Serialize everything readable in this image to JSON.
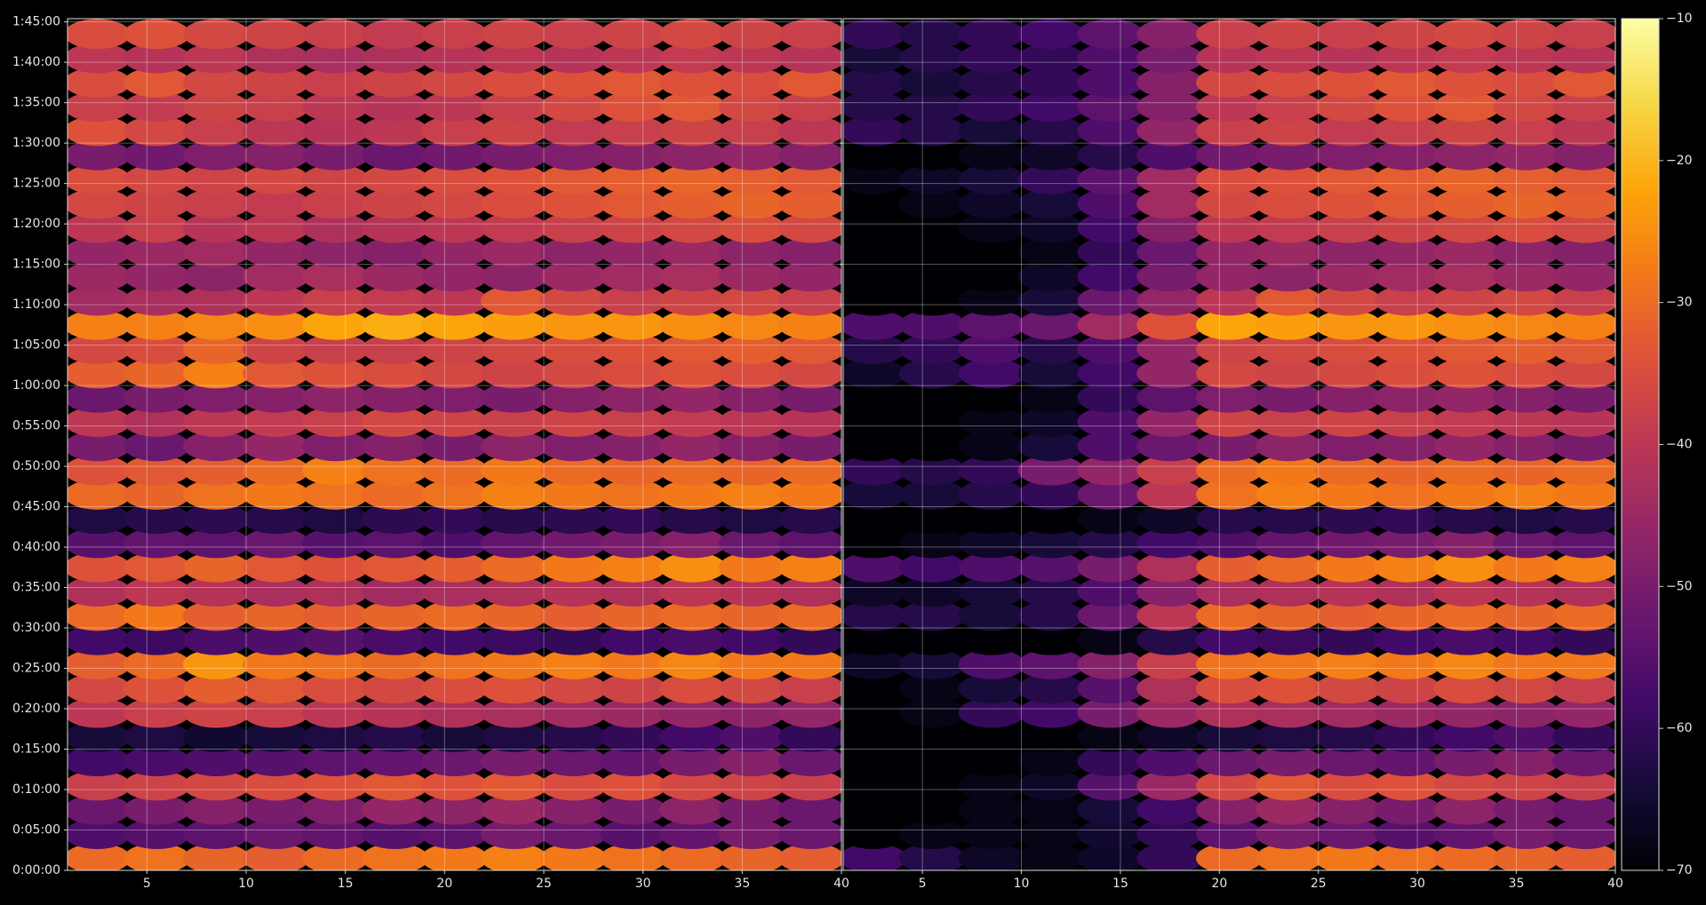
{
  "chart_data": [
    {
      "type": "heatmap",
      "colormap": "inferno",
      "clim": [
        -70,
        -10
      ],
      "grid": true,
      "xlim": [
        1,
        40
      ],
      "ylim": [
        0,
        105.4
      ],
      "xticks": [
        5,
        10,
        15,
        20,
        25,
        30,
        35,
        40
      ],
      "yticks": [
        {
          "value": 0,
          "label": "0:00:00"
        },
        {
          "value": 5,
          "label": "0:05:00"
        },
        {
          "value": 10,
          "label": "0:10:00"
        },
        {
          "value": 15,
          "label": "0:15:00"
        },
        {
          "value": 20,
          "label": "0:20:00"
        },
        {
          "value": 25,
          "label": "0:25:00"
        },
        {
          "value": 30,
          "label": "0:30:00"
        },
        {
          "value": 35,
          "label": "0:35:00"
        },
        {
          "value": 40,
          "label": "0:40:00"
        },
        {
          "value": 45,
          "label": "0:45:00"
        },
        {
          "value": 50,
          "label": "0:50:00"
        },
        {
          "value": 55,
          "label": "0:55:00"
        },
        {
          "value": 60,
          "label": "1:00:00"
        },
        {
          "value": 65,
          "label": "1:05:00"
        },
        {
          "value": 70,
          "label": "1:10:00"
        },
        {
          "value": 75,
          "label": "1:15:00"
        },
        {
          "value": 80,
          "label": "1:20:00"
        },
        {
          "value": 85,
          "label": "1:25:00"
        },
        {
          "value": 90,
          "label": "1:30:00"
        },
        {
          "value": 95,
          "label": "1:35:00"
        },
        {
          "value": 100,
          "label": "1:40:00"
        },
        {
          "value": 105,
          "label": "1:45:00"
        }
      ],
      "x": [
        2.5,
        5.5,
        8.5,
        11.5,
        14.5,
        17.5,
        20.5,
        23.5,
        26.5,
        29.5,
        32.5,
        35.5,
        38.5
      ],
      "y": [
        1.5,
        4.5,
        7.5,
        10.5,
        13.5,
        16.5,
        19.5,
        22.5,
        25.5,
        28.5,
        31.5,
        34.5,
        37.5,
        40.5,
        43.5,
        46.5,
        49.5,
        52.5,
        55.5,
        58.5,
        61.5,
        64.5,
        67.5,
        70.5,
        73.5,
        76.5,
        79.5,
        82.5,
        85.5,
        88.5,
        91.5,
        94.5,
        97.5,
        100.5,
        103.5
      ],
      "values": [
        [
          -30,
          -29,
          -31,
          -32,
          -30,
          -29,
          -28,
          -27,
          -28,
          -29,
          -30,
          -31,
          -32
        ],
        [
          -56,
          -55,
          -54,
          -52,
          -53,
          -55,
          -54,
          -50,
          -52,
          -55,
          -53,
          -50,
          -52
        ],
        [
          -52,
          -50,
          -48,
          -50,
          -49,
          -46,
          -47,
          -45,
          -48,
          -50,
          -47,
          -50,
          -52
        ],
        [
          -38,
          -37,
          -36,
          -35,
          -34,
          -33,
          -34,
          -33,
          -35,
          -34,
          -36,
          -37,
          -38
        ],
        [
          -58,
          -57,
          -56,
          -55,
          -54,
          -53,
          -52,
          -50,
          -52,
          -53,
          -50,
          -48,
          -52
        ],
        [
          -64,
          -63,
          -65,
          -64,
          -63,
          -62,
          -64,
          -63,
          -62,
          -60,
          -58,
          -56,
          -60
        ],
        [
          -40,
          -38,
          -37,
          -38,
          -40,
          -41,
          -42,
          -43,
          -44,
          -45,
          -46,
          -47,
          -46
        ],
        [
          -36,
          -34,
          -32,
          -33,
          -35,
          -36,
          -35,
          -34,
          -36,
          -37,
          -35,
          -36,
          -38
        ],
        [
          -32,
          -30,
          -24,
          -28,
          -29,
          -30,
          -29,
          -28,
          -27,
          -28,
          -26,
          -28,
          -28
        ],
        [
          -58,
          -59,
          -57,
          -56,
          -55,
          -57,
          -58,
          -59,
          -60,
          -58,
          -57,
          -58,
          -60
        ],
        [
          -30,
          -28,
          -32,
          -31,
          -32,
          -31,
          -30,
          -31,
          -32,
          -31,
          -30,
          -31,
          -30
        ],
        [
          -42,
          -40,
          -41,
          -43,
          -42,
          -44,
          -43,
          -42,
          -41,
          -42,
          -40,
          -41,
          -42
        ],
        [
          -34,
          -33,
          -31,
          -33,
          -34,
          -33,
          -32,
          -30,
          -28,
          -27,
          -25,
          -28,
          -27
        ],
        [
          -55,
          -53,
          -54,
          -52,
          -55,
          -54,
          -56,
          -53,
          -51,
          -50,
          -48,
          -52,
          -54
        ],
        [
          -63,
          -62,
          -61,
          -62,
          -63,
          -61,
          -60,
          -62,
          -61,
          -60,
          -62,
          -63,
          -62
        ],
        [
          -30,
          -31,
          -29,
          -28,
          -29,
          -30,
          -29,
          -27,
          -28,
          -29,
          -28,
          -27,
          -28
        ],
        [
          -34,
          -33,
          -32,
          -30,
          -27,
          -29,
          -30,
          -28,
          -30,
          -31,
          -30,
          -31,
          -30
        ],
        [
          -50,
          -52,
          -48,
          -46,
          -49,
          -48,
          -50,
          -47,
          -49,
          -48,
          -46,
          -48,
          -50
        ],
        [
          -40,
          -42,
          -40,
          -39,
          -38,
          -36,
          -37,
          -38,
          -37,
          -38,
          -39,
          -40,
          -41
        ],
        [
          -52,
          -50,
          -49,
          -48,
          -47,
          -48,
          -49,
          -50,
          -48,
          -47,
          -46,
          -48,
          -50
        ],
        [
          -32,
          -31,
          -27,
          -33,
          -34,
          -35,
          -36,
          -37,
          -36,
          -35,
          -34,
          -35,
          -36
        ],
        [
          -36,
          -35,
          -31,
          -37,
          -38,
          -38,
          -37,
          -36,
          -35,
          -34,
          -33,
          -32,
          -33
        ],
        [
          -27,
          -27,
          -26,
          -25,
          -22,
          -21,
          -22,
          -23,
          -24,
          -24,
          -25,
          -26,
          -27
        ],
        [
          -44,
          -43,
          -42,
          -40,
          -38,
          -39,
          -40,
          -33,
          -36,
          -38,
          -37,
          -36,
          -38
        ],
        [
          -45,
          -46,
          -47,
          -44,
          -43,
          -45,
          -46,
          -47,
          -45,
          -44,
          -43,
          -45,
          -46
        ],
        [
          -46,
          -45,
          -44,
          -46,
          -47,
          -48,
          -46,
          -45,
          -47,
          -46,
          -45,
          -47,
          -48
        ],
        [
          -40,
          -38,
          -41,
          -40,
          -42,
          -41,
          -40,
          -39,
          -38,
          -37,
          -36,
          -35,
          -36
        ],
        [
          -36,
          -37,
          -38,
          -39,
          -38,
          -37,
          -36,
          -35,
          -34,
          -33,
          -32,
          -31,
          -32
        ],
        [
          -35,
          -36,
          -37,
          -36,
          -37,
          -36,
          -35,
          -34,
          -33,
          -32,
          -31,
          -32,
          -33
        ],
        [
          -50,
          -51,
          -49,
          -48,
          -50,
          -52,
          -51,
          -50,
          -49,
          -48,
          -47,
          -46,
          -48
        ],
        [
          -34,
          -36,
          -38,
          -40,
          -41,
          -40,
          -38,
          -37,
          -39,
          -38,
          -37,
          -38,
          -40
        ],
        [
          -38,
          -39,
          -37,
          -38,
          -40,
          -41,
          -40,
          -38,
          -36,
          -34,
          -33,
          -36,
          -38
        ],
        [
          -35,
          -33,
          -36,
          -37,
          -38,
          -37,
          -36,
          -35,
          -34,
          -33,
          -34,
          -35,
          -33
        ],
        [
          -40,
          -41,
          -40,
          -42,
          -43,
          -42,
          -41,
          -40,
          -41,
          -40,
          -39,
          -40,
          -41
        ],
        [
          -35,
          -34,
          -36,
          -37,
          -38,
          -39,
          -38,
          -37,
          -38,
          -37,
          -36,
          -37,
          -38
        ]
      ]
    },
    {
      "type": "heatmap",
      "colormap": "inferno",
      "clim": [
        -70,
        -10
      ],
      "grid": true,
      "sharey": true,
      "xlim": [
        1,
        40
      ],
      "ylim": [
        0,
        105.4
      ],
      "xticks": [
        5,
        10,
        15,
        20,
        25,
        30,
        35,
        40
      ],
      "x": [
        2.5,
        5.5,
        8.5,
        11.5,
        14.5,
        17.5,
        20.5,
        23.5,
        26.5,
        29.5,
        32.5,
        35.5,
        38.5
      ],
      "y": [
        1.5,
        4.5,
        7.5,
        10.5,
        13.5,
        16.5,
        19.5,
        22.5,
        25.5,
        28.5,
        31.5,
        34.5,
        37.5,
        40.5,
        43.5,
        46.5,
        49.5,
        52.5,
        55.5,
        58.5,
        61.5,
        64.5,
        67.5,
        70.5,
        73.5,
        76.5,
        79.5,
        82.5,
        85.5,
        88.5,
        91.5,
        94.5,
        97.5,
        100.5,
        103.5
      ],
      "values": [
        [
          -58,
          -62,
          -66,
          -68,
          -66,
          -60,
          -30,
          -29,
          -28,
          -29,
          -30,
          -31,
          -32
        ],
        [
          -70,
          -68,
          -68,
          -68,
          -65,
          -60,
          -54,
          -50,
          -52,
          -55,
          -53,
          -50,
          -52
        ],
        [
          -70,
          -70,
          -68,
          -68,
          -64,
          -58,
          -48,
          -45,
          -48,
          -50,
          -47,
          -50,
          -52
        ],
        [
          -70,
          -70,
          -68,
          -66,
          -55,
          -45,
          -36,
          -33,
          -35,
          -34,
          -36,
          -37,
          -38
        ],
        [
          -70,
          -70,
          -70,
          -68,
          -60,
          -56,
          -52,
          -50,
          -52,
          -53,
          -50,
          -48,
          -52
        ],
        [
          -70,
          -70,
          -70,
          -70,
          -68,
          -66,
          -64,
          -63,
          -62,
          -60,
          -58,
          -56,
          -60
        ],
        [
          -70,
          -68,
          -60,
          -58,
          -50,
          -45,
          -42,
          -43,
          -44,
          -45,
          -46,
          -47,
          -46
        ],
        [
          -70,
          -68,
          -64,
          -62,
          -55,
          -42,
          -35,
          -34,
          -36,
          -37,
          -35,
          -36,
          -38
        ],
        [
          -66,
          -64,
          -56,
          -54,
          -48,
          -38,
          -29,
          -28,
          -27,
          -28,
          -26,
          -28,
          -28
        ],
        [
          -70,
          -70,
          -70,
          -70,
          -68,
          -62,
          -58,
          -59,
          -60,
          -58,
          -57,
          -58,
          -60
        ],
        [
          -62,
          -62,
          -64,
          -62,
          -52,
          -40,
          -30,
          -31,
          -32,
          -31,
          -30,
          -31,
          -30
        ],
        [
          -66,
          -66,
          -64,
          -62,
          -56,
          -48,
          -43,
          -42,
          -41,
          -42,
          -40,
          -41,
          -42
        ],
        [
          -56,
          -58,
          -56,
          -55,
          -50,
          -42,
          -32,
          -30,
          -28,
          -27,
          -25,
          -28,
          -27
        ],
        [
          -70,
          -68,
          -66,
          -64,
          -62,
          -58,
          -56,
          -53,
          -51,
          -50,
          -48,
          -52,
          -54
        ],
        [
          -70,
          -70,
          -70,
          -70,
          -68,
          -66,
          -62,
          -62,
          -61,
          -60,
          -62,
          -63,
          -62
        ],
        [
          -64,
          -64,
          -62,
          -60,
          -52,
          -40,
          -29,
          -27,
          -28,
          -29,
          -28,
          -27,
          -28
        ],
        [
          -60,
          -62,
          -60,
          -50,
          -46,
          -38,
          -30,
          -28,
          -30,
          -31,
          -30,
          -31,
          -30
        ],
        [
          -70,
          -70,
          -68,
          -64,
          -56,
          -52,
          -50,
          -47,
          -49,
          -48,
          -46,
          -48,
          -50
        ],
        [
          -70,
          -70,
          -68,
          -66,
          -56,
          -46,
          -37,
          -38,
          -37,
          -38,
          -39,
          -40,
          -41
        ],
        [
          -70,
          -70,
          -70,
          -68,
          -60,
          -54,
          -49,
          -50,
          -48,
          -47,
          -46,
          -48,
          -50
        ],
        [
          -66,
          -62,
          -58,
          -64,
          -58,
          -46,
          -36,
          -37,
          -36,
          -35,
          -34,
          -35,
          -36
        ],
        [
          -62,
          -60,
          -56,
          -62,
          -56,
          -46,
          -37,
          -36,
          -35,
          -34,
          -33,
          -32,
          -33
        ],
        [
          -56,
          -56,
          -54,
          -52,
          -44,
          -34,
          -22,
          -23,
          -24,
          -24,
          -25,
          -26,
          -27
        ],
        [
          -70,
          -70,
          -68,
          -64,
          -52,
          -46,
          -40,
          -33,
          -36,
          -38,
          -37,
          -36,
          -38
        ],
        [
          -70,
          -70,
          -70,
          -66,
          -58,
          -50,
          -46,
          -47,
          -45,
          -44,
          -43,
          -45,
          -46
        ],
        [
          -70,
          -70,
          -70,
          -68,
          -60,
          -52,
          -46,
          -45,
          -47,
          -46,
          -45,
          -47,
          -48
        ],
        [
          -70,
          -70,
          -68,
          -66,
          -58,
          -48,
          -40,
          -39,
          -38,
          -37,
          -36,
          -35,
          -36
        ],
        [
          -70,
          -68,
          -66,
          -64,
          -56,
          -44,
          -36,
          -35,
          -34,
          -33,
          -32,
          -31,
          -32
        ],
        [
          -68,
          -66,
          -64,
          -60,
          -54,
          -44,
          -35,
          -34,
          -33,
          -32,
          -31,
          -32,
          -33
        ],
        [
          -70,
          -70,
          -68,
          -66,
          -62,
          -56,
          -51,
          -50,
          -49,
          -48,
          -47,
          -46,
          -48
        ],
        [
          -60,
          -62,
          -64,
          -62,
          -56,
          -46,
          -38,
          -37,
          -39,
          -38,
          -37,
          -38,
          -40
        ],
        [
          -62,
          -62,
          -60,
          -58,
          -54,
          -48,
          -40,
          -38,
          -36,
          -34,
          -33,
          -36,
          -38
        ],
        [
          -62,
          -64,
          -62,
          -60,
          -56,
          -48,
          -36,
          -35,
          -34,
          -33,
          -34,
          -35,
          -33
        ],
        [
          -64,
          -62,
          -60,
          -60,
          -56,
          -50,
          -41,
          -40,
          -41,
          -40,
          -39,
          -40,
          -41
        ],
        [
          -60,
          -62,
          -60,
          -58,
          -54,
          -48,
          -38,
          -37,
          -38,
          -37,
          -36,
          -37,
          -38
        ]
      ],
      "colorbar": {
        "ticks": [
          {
            "value": -70,
            "label": "−70"
          },
          {
            "value": -60,
            "label": "−60"
          },
          {
            "value": -50,
            "label": "−50"
          },
          {
            "value": -40,
            "label": "−40"
          },
          {
            "value": -30,
            "label": "−30"
          },
          {
            "value": -20,
            "label": "−20"
          },
          {
            "value": -10,
            "label": "−10"
          }
        ]
      }
    }
  ]
}
